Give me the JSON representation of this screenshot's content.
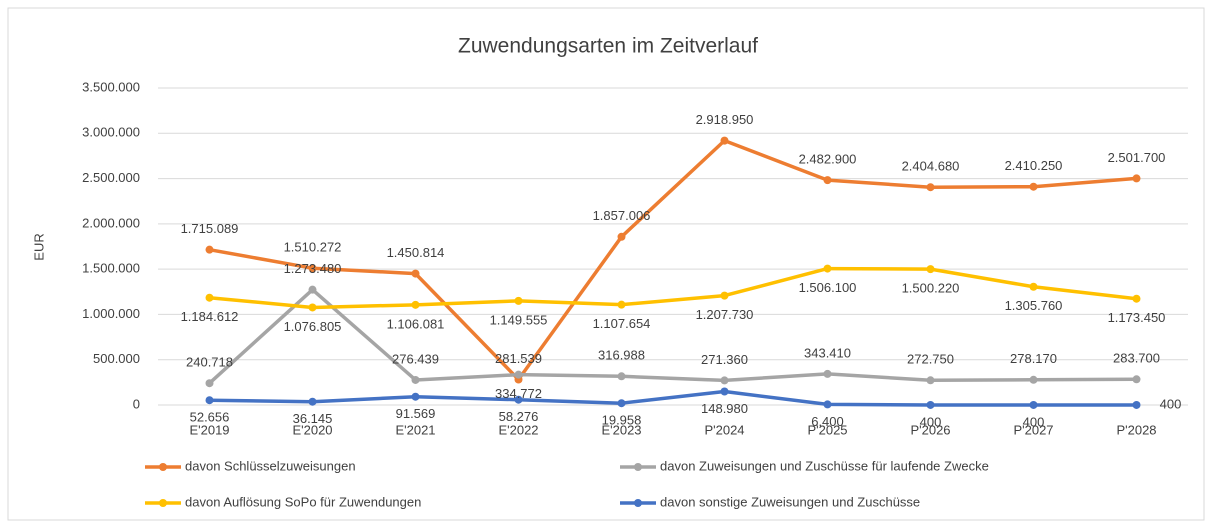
{
  "chart_data": {
    "type": "line",
    "title": "Zuwendungsarten im Zeitverlauf",
    "ylabel": "EUR",
    "categories": [
      "E'2019",
      "E'2020",
      "E'2021",
      "E'2022",
      "E'2023",
      "P'2024",
      "P'2025",
      "P'2026",
      "P'2027",
      "P'2028"
    ],
    "ylim": [
      0,
      3500000
    ],
    "yticks": [
      0,
      {
        "value": 500000,
        "label": "500.000"
      },
      {
        "value": 1000000,
        "label": "1.000.000"
      },
      {
        "value": 1500000,
        "label": "1.500.000"
      },
      {
        "value": 2000000,
        "label": "2.000.000"
      },
      {
        "value": 2500000,
        "label": "2.500.000"
      },
      {
        "value": 3000000,
        "label": "3.000.000"
      },
      {
        "value": 3500000,
        "label": "3.500.000"
      }
    ],
    "grid": true,
    "legend": "bottom",
    "series": [
      {
        "name": "davon Schlüsselzuweisungen",
        "color": "#ed7d31",
        "values": [
          1715089,
          1510272,
          1450814,
          281539,
          1857006,
          2918950,
          2482900,
          2404680,
          2410250,
          2501700
        ],
        "value_labels": [
          "1.715.089",
          "1.510.272",
          "1.450.814",
          "281.539",
          "1.857.006",
          "2.918.950",
          "2.482.900",
          "2.404.680",
          "2.410.250",
          "2.501.700"
        ]
      },
      {
        "name": "davon Zuweisungen und Zuschüsse für laufende Zwecke",
        "color": "#a5a5a5",
        "values": [
          240718,
          1273480,
          276439,
          334772,
          316988,
          271360,
          343410,
          272750,
          278170,
          283700
        ],
        "value_labels": [
          "240.718",
          "1.273.480",
          "276.439",
          "334.772",
          "316.988",
          "271.360",
          "343.410",
          "272.750",
          "278.170",
          "283.700"
        ]
      },
      {
        "name": "davon Auflösung SoPo für Zuwendungen",
        "color": "#ffc000",
        "values": [
          1184612,
          1076805,
          1106081,
          1149555,
          1107654,
          1207730,
          1506100,
          1500220,
          1305760,
          1173450
        ],
        "value_labels": [
          "1.184.612",
          "1.076.805",
          "1.106.081",
          "1.149.555",
          "1.107.654",
          "1.207.730",
          "1.506.100",
          "1.500.220",
          "1.305.760",
          "1.173.450"
        ]
      },
      {
        "name": "davon sonstige Zuweisungen und Zuschüsse",
        "color": "#4472c4",
        "values": [
          52656,
          36145,
          91569,
          58276,
          19958,
          148980,
          6400,
          400,
          400,
          400
        ],
        "value_labels": [
          "52.656",
          "36.145",
          "91.569",
          "58.276",
          "19.958",
          "148.980",
          "6.400",
          "400",
          "400",
          "400"
        ]
      }
    ]
  }
}
